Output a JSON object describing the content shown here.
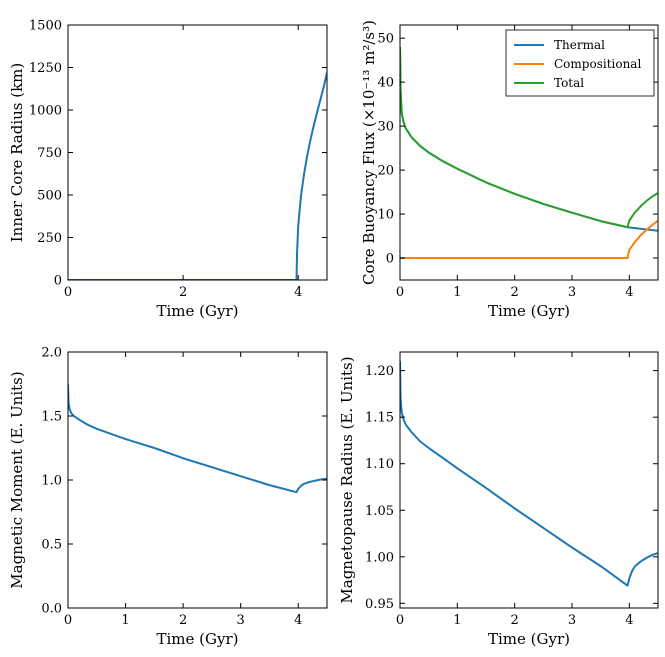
{
  "colors": {
    "thermal": "#1f77b4",
    "compositional": "#ff7f0e",
    "total": "#2ca02c",
    "axes": "#000000"
  },
  "chart_data": [
    {
      "id": "inner-core",
      "type": "line",
      "xlabel": "Time (Gyr)",
      "ylabel": "Inner Core Radius (km)",
      "xlim": [
        0,
        4.5
      ],
      "ylim": [
        0,
        1500
      ],
      "xticks": [
        0,
        2,
        4
      ],
      "yticks": [
        0,
        250,
        500,
        750,
        1000,
        1250,
        1500
      ],
      "series": [
        {
          "name": "Inner core radius",
          "color_key": "thermal",
          "x": [
            0,
            3.97,
            3.97,
            3.98,
            4.0,
            4.05,
            4.1,
            4.15,
            4.2,
            4.25,
            4.3,
            4.35,
            4.4,
            4.45,
            4.5
          ],
          "y": [
            0,
            0,
            0,
            160,
            320,
            500,
            620,
            720,
            805,
            880,
            950,
            1015,
            1080,
            1145,
            1220
          ]
        }
      ]
    },
    {
      "id": "buoyancy-flux",
      "type": "line",
      "xlabel": "Time (Gyr)",
      "ylabel": "Core Buoyancy Flux (×10⁻¹³ m²/s³)",
      "xlim": [
        0,
        4.5
      ],
      "ylim": [
        -5,
        53
      ],
      "xticks": [
        0,
        1,
        2,
        3,
        4
      ],
      "yticks": [
        0,
        10,
        20,
        30,
        40,
        50
      ],
      "legend": {
        "position": "top-right",
        "labels": [
          "Thermal",
          "Compositional",
          "Total"
        ]
      },
      "series": [
        {
          "name": "Thermal",
          "color_key": "thermal",
          "x": [
            0,
            0.01,
            0.03,
            0.06,
            0.1,
            0.2,
            0.35,
            0.5,
            0.75,
            1.0,
            1.5,
            2.0,
            2.5,
            3.0,
            3.5,
            3.97,
            4.1,
            4.3,
            4.5
          ],
          "y": [
            48,
            38,
            33,
            31,
            29.5,
            27.5,
            25.5,
            24,
            22,
            20.3,
            17.2,
            14.6,
            12.3,
            10.3,
            8.4,
            7.0,
            6.8,
            6.5,
            6.2
          ]
        },
        {
          "name": "Compositional",
          "color_key": "compositional",
          "x": [
            0,
            3.97,
            3.98,
            4.0,
            4.05,
            4.1,
            4.2,
            4.3,
            4.4,
            4.5
          ],
          "y": [
            0,
            0,
            0.8,
            1.8,
            2.8,
            3.7,
            5.2,
            6.4,
            7.5,
            8.5
          ]
        },
        {
          "name": "Total",
          "color_key": "total",
          "x": [
            0,
            0.01,
            0.03,
            0.06,
            0.1,
            0.2,
            0.35,
            0.5,
            0.75,
            1.0,
            1.5,
            2.0,
            2.5,
            3.0,
            3.5,
            3.97,
            3.98,
            4.0,
            4.05,
            4.1,
            4.2,
            4.3,
            4.4,
            4.5
          ],
          "y": [
            48,
            38,
            33,
            31,
            29.5,
            27.5,
            25.5,
            24,
            22,
            20.3,
            17.2,
            14.6,
            12.3,
            10.3,
            8.4,
            7.0,
            7.6,
            8.5,
            9.5,
            10.4,
            11.8,
            13.0,
            14.0,
            14.8
          ]
        }
      ]
    },
    {
      "id": "magnetic-moment",
      "type": "line",
      "xlabel": "Time (Gyr)",
      "ylabel": "Magnetic Moment (E. Units)",
      "xlim": [
        0,
        4.5
      ],
      "ylim": [
        0,
        2.0
      ],
      "xticks": [
        0,
        1,
        2,
        3,
        4
      ],
      "yticks": [
        0.0,
        0.5,
        1.0,
        1.5,
        2.0
      ],
      "ytick_labels": [
        "0.0",
        "0.5",
        "1.0",
        "1.5",
        "2.0"
      ],
      "series": [
        {
          "name": "Magnetic moment",
          "color_key": "thermal",
          "x": [
            0,
            0.01,
            0.03,
            0.06,
            0.1,
            0.2,
            0.35,
            0.5,
            0.75,
            1.0,
            1.5,
            2.0,
            2.5,
            3.0,
            3.5,
            3.97,
            4.0,
            4.05,
            4.1,
            4.2,
            4.3,
            4.4,
            4.5
          ],
          "y": [
            1.75,
            1.6,
            1.55,
            1.52,
            1.5,
            1.47,
            1.43,
            1.4,
            1.36,
            1.32,
            1.25,
            1.17,
            1.1,
            1.03,
            0.96,
            0.905,
            0.93,
            0.955,
            0.97,
            0.985,
            0.995,
            1.005,
            1.01
          ]
        }
      ]
    },
    {
      "id": "magnetopause",
      "type": "line",
      "xlabel": "Time (Gyr)",
      "ylabel": "Magnetopause Radius (E. Units)",
      "xlim": [
        0,
        4.5
      ],
      "ylim": [
        0.945,
        1.22
      ],
      "xticks": [
        0,
        1,
        2,
        3,
        4
      ],
      "yticks": [
        0.95,
        1.0,
        1.05,
        1.1,
        1.15,
        1.2
      ],
      "ytick_labels": [
        "0.95",
        "1.00",
        "1.05",
        "1.10",
        "1.15",
        "1.20"
      ],
      "series": [
        {
          "name": "Magnetopause radius",
          "color_key": "thermal",
          "x": [
            0,
            0.01,
            0.03,
            0.06,
            0.1,
            0.2,
            0.35,
            0.5,
            0.75,
            1.0,
            1.5,
            2.0,
            2.5,
            3.0,
            3.5,
            3.97,
            4.0,
            4.05,
            4.1,
            4.2,
            4.3,
            4.4,
            4.5
          ],
          "y": [
            1.21,
            1.17,
            1.155,
            1.148,
            1.142,
            1.134,
            1.124,
            1.117,
            1.106,
            1.095,
            1.074,
            1.052,
            1.031,
            1.01,
            0.99,
            0.969,
            0.977,
            0.985,
            0.99,
            0.995,
            0.999,
            1.002,
            1.004
          ]
        }
      ]
    }
  ]
}
